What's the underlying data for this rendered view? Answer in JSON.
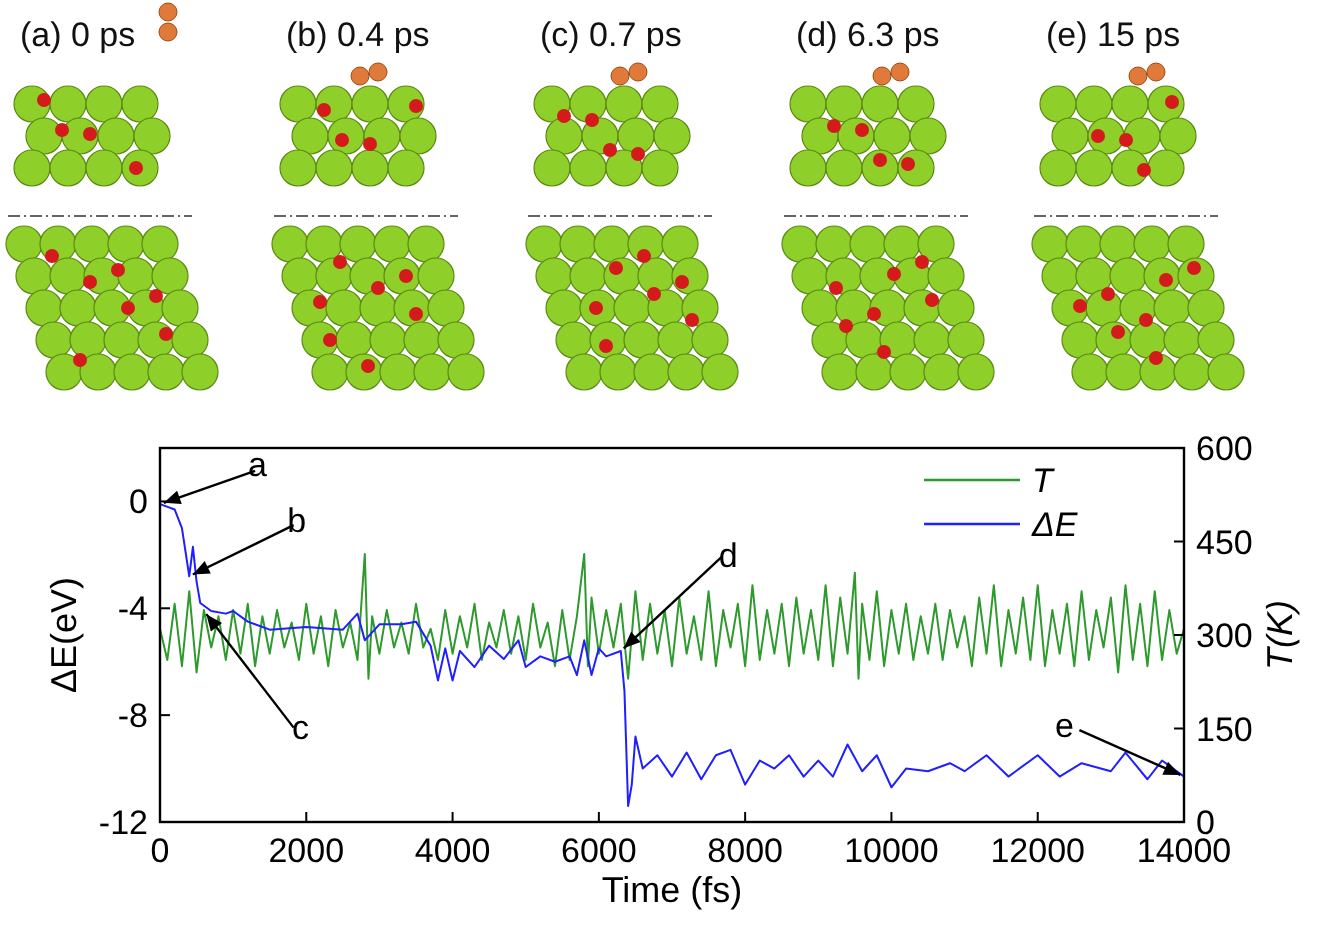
{
  "chart_data": {
    "type": "line",
    "xlabel": "Time (fs)",
    "ylabel": "ΔE(eV)",
    "y2label": "T(K)",
    "xlim": [
      0,
      14000
    ],
    "xticks": [
      0,
      2000,
      4000,
      6000,
      8000,
      10000,
      12000,
      14000
    ],
    "ylim": [
      -12,
      2
    ],
    "yticks": [
      0,
      -4,
      -8,
      -12
    ],
    "y2lim": [
      0,
      600
    ],
    "y2ticks": [
      0,
      150,
      300,
      450,
      600
    ],
    "legend": "top right",
    "grid": false,
    "line_style": "solid",
    "marker": "none",
    "series": [
      {
        "name": "T",
        "color": "#2e9a2e",
        "axis": "y2",
        "x": [
          0,
          100,
          200,
          300,
          400,
          500,
          600,
          700,
          800,
          900,
          1000,
          1100,
          1200,
          1300,
          1400,
          1500,
          1600,
          1700,
          1800,
          1900,
          2000,
          2100,
          2200,
          2300,
          2400,
          2500,
          2600,
          2700,
          2800,
          2850,
          2900,
          3000,
          3100,
          3200,
          3300,
          3400,
          3500,
          3600,
          3700,
          3800,
          3900,
          4000,
          4100,
          4200,
          4300,
          4400,
          4500,
          4600,
          4700,
          4800,
          4900,
          5000,
          5100,
          5200,
          5300,
          5400,
          5500,
          5600,
          5700,
          5800,
          5850,
          5900,
          6000,
          6100,
          6200,
          6300,
          6400,
          6500,
          6600,
          6700,
          6800,
          6900,
          7000,
          7100,
          7200,
          7300,
          7400,
          7500,
          7600,
          7700,
          7800,
          7900,
          8000,
          8100,
          8200,
          8300,
          8400,
          8500,
          8600,
          8700,
          8800,
          8900,
          9000,
          9100,
          9200,
          9300,
          9400,
          9500,
          9550,
          9600,
          9700,
          9800,
          9900,
          10000,
          10100,
          10200,
          10300,
          10400,
          10500,
          10600,
          10700,
          10800,
          10900,
          11000,
          11100,
          11200,
          11300,
          11400,
          11500,
          11600,
          11700,
          11800,
          11900,
          12000,
          12100,
          12200,
          12300,
          12400,
          12500,
          12600,
          12700,
          12800,
          12900,
          13000,
          13100,
          13200,
          13300,
          13400,
          13500,
          13600,
          13700,
          13800,
          13900,
          14000
        ],
        "values": [
          310,
          260,
          350,
          250,
          370,
          240,
          340,
          280,
          330,
          260,
          340,
          270,
          350,
          250,
          330,
          270,
          340,
          280,
          320,
          260,
          350,
          270,
          330,
          250,
          340,
          280,
          320,
          260,
          430,
          230,
          330,
          270,
          340,
          280,
          320,
          270,
          350,
          280,
          310,
          260,
          340,
          270,
          330,
          280,
          350,
          260,
          320,
          280,
          340,
          270,
          330,
          260,
          350,
          280,
          320,
          250,
          340,
          260,
          330,
          430,
          250,
          360,
          270,
          340,
          280,
          350,
          230,
          370,
          260,
          350,
          270,
          340,
          250,
          360,
          270,
          330,
          260,
          370,
          250,
          340,
          280,
          350,
          250,
          380,
          260,
          340,
          270,
          350,
          250,
          360,
          270,
          340,
          260,
          380,
          250,
          360,
          270,
          400,
          230,
          350,
          260,
          370,
          250,
          340,
          270,
          350,
          260,
          330,
          270,
          350,
          260,
          340,
          280,
          330,
          250,
          360,
          270,
          380,
          250,
          340,
          270,
          360,
          260,
          380,
          250,
          340,
          270,
          350,
          250,
          370,
          260,
          340,
          280,
          360,
          240,
          380,
          260,
          350,
          250,
          370,
          260,
          340,
          270,
          310
        ]
      },
      {
        "name": "ΔE",
        "color": "#1f1fff",
        "x": [
          0,
          200,
          300,
          400,
          450,
          500,
          550,
          700,
          900,
          1000,
          1200,
          1500,
          2000,
          2500,
          2700,
          2800,
          3000,
          3300,
          3500,
          3700,
          3800,
          3900,
          4000,
          4100,
          4300,
          4500,
          4700,
          4900,
          5000,
          5200,
          5400,
          5600,
          5700,
          5800,
          5900,
          6000,
          6100,
          6300,
          6350,
          6400,
          6450,
          6500,
          6600,
          6800,
          7000,
          7200,
          7400,
          7600,
          7800,
          8000,
          8200,
          8400,
          8600,
          8800,
          9000,
          9200,
          9400,
          9600,
          9800,
          10000,
          10200,
          10500,
          10800,
          11000,
          11300,
          11600,
          12000,
          12300,
          12600,
          13000,
          13200,
          13500,
          13700,
          14000
        ],
        "values": [
          -0.1,
          -0.3,
          -1.0,
          -2.8,
          -1.7,
          -3.0,
          -3.8,
          -4.1,
          -4.2,
          -4.1,
          -4.5,
          -4.8,
          -4.7,
          -4.8,
          -4.2,
          -5.2,
          -4.6,
          -4.6,
          -4.5,
          -5.4,
          -6.7,
          -5.5,
          -6.7,
          -5.6,
          -6.2,
          -5.4,
          -5.9,
          -5.2,
          -6.2,
          -5.8,
          -6.0,
          -5.8,
          -6.5,
          -5.2,
          -6.5,
          -5.5,
          -5.8,
          -5.6,
          -7.1,
          -11.4,
          -10.6,
          -8.8,
          -10.0,
          -9.5,
          -10.3,
          -9.4,
          -10.4,
          -9.5,
          -9.3,
          -10.6,
          -9.7,
          -10.0,
          -9.5,
          -10.3,
          -9.7,
          -10.3,
          -9.1,
          -10.1,
          -9.5,
          -10.7,
          -10.0,
          -10.1,
          -9.8,
          -10.1,
          -9.5,
          -10.3,
          -9.5,
          -10.3,
          -9.8,
          -10.1,
          -9.4,
          -10.4,
          -9.7,
          -10.3
        ]
      }
    ],
    "annotations": [
      "(a) 0 ps",
      "(b) 0.4 ps",
      "(c) 0.7 ps",
      "(d) 6.3 ps",
      "(e) 15 ps",
      {
        "text": "a",
        "x": 0,
        "y": -0.1
      },
      {
        "text": "b",
        "x": 400,
        "y": -2.8
      },
      {
        "text": "c",
        "x": 600,
        "y": -4.1
      },
      {
        "text": "d",
        "x": 6300,
        "y": -5.6
      },
      {
        "text": "e",
        "x": 14000,
        "y": -10.3
      }
    ]
  }
}
